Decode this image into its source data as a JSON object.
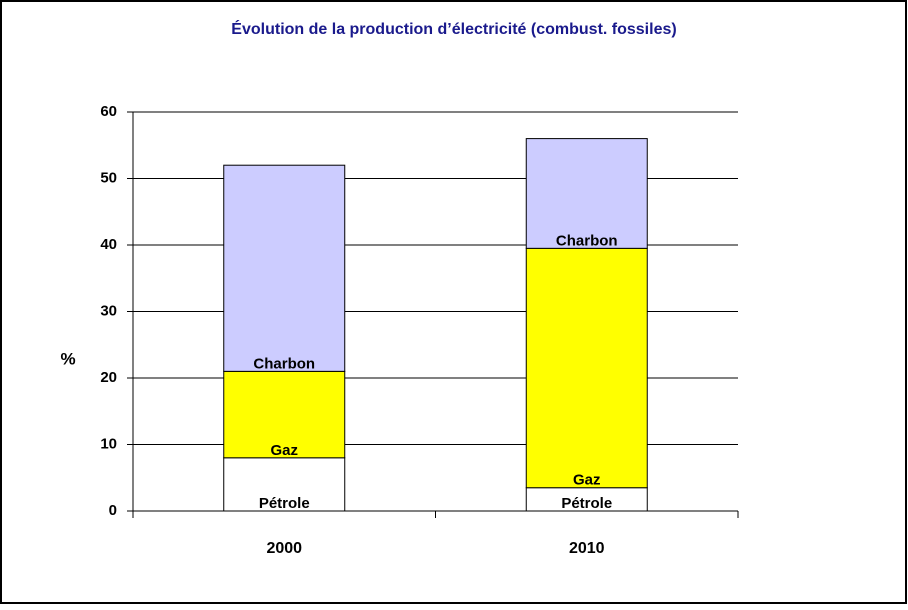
{
  "chart_data": {
    "type": "stacked_bar",
    "title": "Évolution de la production d’électricité (combust. fossiles)",
    "ylabel": "%",
    "categories": [
      "2000",
      "2010"
    ],
    "series": [
      {
        "name": "Pétrole",
        "color": "#ffffff",
        "values": [
          8,
          3.5
        ]
      },
      {
        "name": "Gaz",
        "color": "#ffff00",
        "values": [
          13,
          36
        ]
      },
      {
        "name": "Charbon",
        "color": "#ccccff",
        "values": [
          31,
          16.5
        ]
      }
    ],
    "ylim": [
      0,
      60
    ],
    "yticks": [
      0,
      10,
      20,
      30,
      40,
      50,
      60
    ],
    "grid": true
  }
}
